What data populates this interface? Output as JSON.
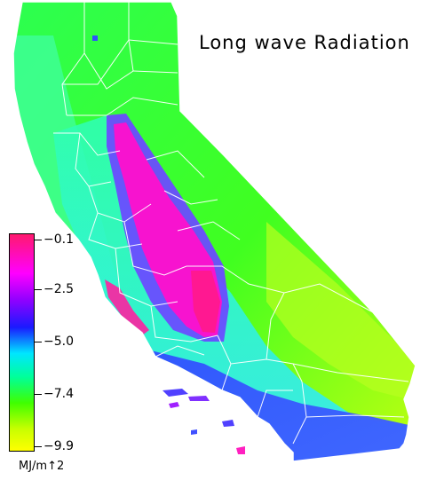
{
  "title": "Long wave Radiation",
  "legend": {
    "unit": "MJ/m↑2",
    "ticks": [
      "−0.1",
      "−2.5",
      "−5.0",
      "−7.4",
      "−9.9"
    ],
    "colors": [
      "#ff1a6e",
      "#ff00ff",
      "#9400ff",
      "#1a1aff",
      "#00e6ff",
      "#00ff99",
      "#40ff00",
      "#c8ff00",
      "#ffff00"
    ]
  },
  "palette": {
    "north": "#2cff40",
    "coast_cyan": "#40ffc8",
    "valley_blue": "#6a4cff",
    "valley_core": "#ff10cc",
    "southeast": "#a8ff20",
    "south_coast": "#2030ff",
    "county_lines": "#ffffff"
  }
}
